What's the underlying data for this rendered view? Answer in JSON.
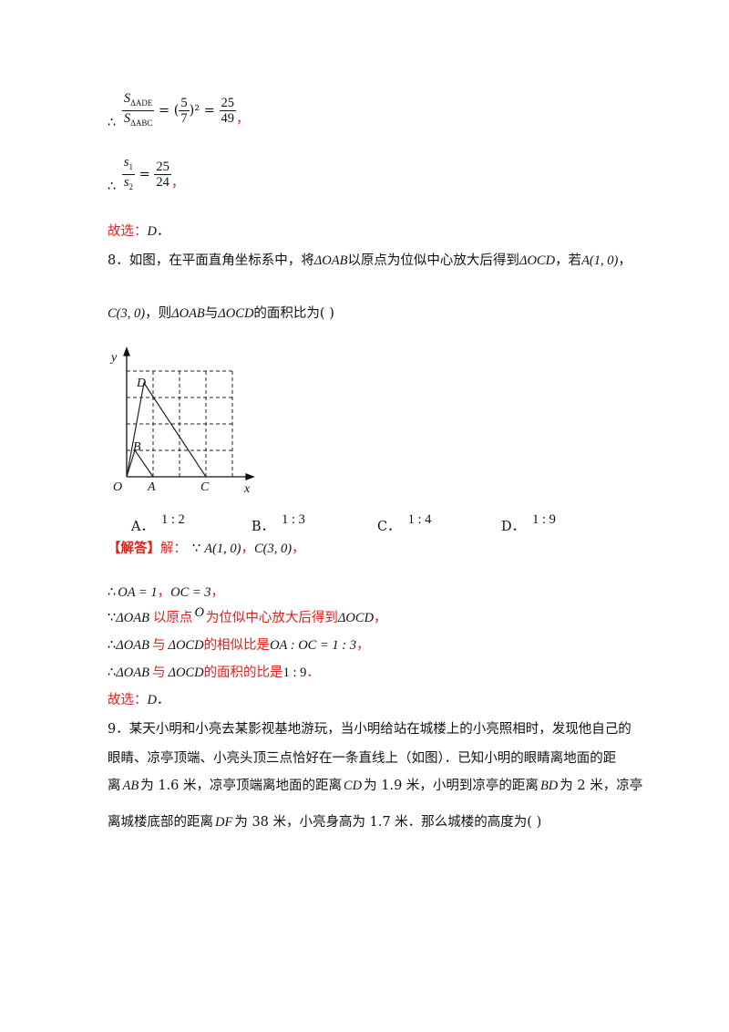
{
  "sol7": {
    "therefore": "∴",
    "frac1_num": "S",
    "frac1_num_sub": "ΔADE",
    "frac1_den": "S",
    "frac1_den_sub": "ΔABC",
    "eq1a": "= (",
    "frac2_num": "5",
    "frac2_den": "7",
    "eq1b": ")² =",
    "frac3_num": "25",
    "frac3_den": "49",
    "comma1": "，",
    "frac4_num": "s",
    "frac4_num_sub": "1",
    "frac4_den": "s",
    "frac4_den_sub": "2",
    "eq2": "=",
    "frac5_num": "25",
    "frac5_den": "24",
    "comma2": "，",
    "choice_prefix": "故选：",
    "choice": "D",
    "choice_suffix": "．"
  },
  "q8": {
    "number": "8．",
    "text1": "如图，在平面直角坐标系中，将",
    "tri1": "ΔOAB",
    "text2": "以原点为位似中心放大后得到",
    "tri2": "ΔOCD",
    "text3": "，若",
    "pointA": "A(1, 0)",
    "text4": "，",
    "pointC": "C(3, 0)",
    "text5": "，则",
    "tri3": "ΔOAB",
    "text6": "与",
    "tri4": "ΔOCD",
    "text7": "的面积比为",
    "paren": "(        )",
    "figure_labels": {
      "y": "y",
      "x": "x",
      "O": "O",
      "A": "A",
      "B": "B",
      "C": "C",
      "D": "D"
    },
    "options": [
      {
        "letter": "A．",
        "value": "1 : 2"
      },
      {
        "letter": "B．",
        "value": "1 : 3"
      },
      {
        "letter": "C．",
        "value": "1 : 4"
      },
      {
        "letter": "D．",
        "value": "1 : 9"
      }
    ]
  },
  "sol8": {
    "tag": "【解答】",
    "tag2": "解：",
    "because": "∵",
    "pA": "A(1, 0)",
    "sep": "，",
    "pC": "C(3, 0)",
    "end": "，",
    "l2_therefore": "∴",
    "l2_oa": "OA = 1",
    "l2_sep": "，",
    "l2_oc": "OC = 3",
    "l2_end": "，",
    "l3_because": "∵",
    "l3_tri": "ΔOAB",
    "l3_text1": "以原点",
    "l3_o": "O",
    "l3_text2": "为位似中心放大后得到",
    "l3_tri2": "ΔOCD",
    "l3_end": "，",
    "l4_therefore": "∴",
    "l4_tri": "ΔOAB",
    "l4_text1": "与",
    "l4_tri2": "ΔOCD",
    "l4_text2": "的相似比是",
    "l4_ratio": "OA : OC = 1 : 3",
    "l4_end": "，",
    "l5_therefore": "∴",
    "l5_tri": "ΔOAB",
    "l5_text1": "与",
    "l5_tri2": "ΔOCD",
    "l5_text2": "的面积的比是",
    "l5_ratio": "1 : 9",
    "l5_end": "．",
    "choice_prefix": "故选：",
    "choice": "D",
    "choice_suffix": "．"
  },
  "q9": {
    "number": "9．",
    "line1": "某天小明和小亮去某影视基地游玩，当小明给站在城楼上的小亮照相时，发现他自己的",
    "line2": "眼睛、凉亭顶端、小亮头顶三点恰好在一条直线上（如图）．已知小明的眼睛离地面的距",
    "l3_a": "离",
    "l3_ab": "AB",
    "l3_b": "为 1.6 米，凉亭顶端离地面的距离",
    "l3_cd": "CD",
    "l3_c": "为 1.9 米，小明到凉亭的距离",
    "l3_bd": "BD",
    "l3_d": "为 2 米，凉亭",
    "l4_a": "离城楼底部的距离",
    "l4_df": "DF",
    "l4_b": "为 38 米，小亮身高为 1.7 米．那么城楼的高度为",
    "paren": "(        )"
  }
}
